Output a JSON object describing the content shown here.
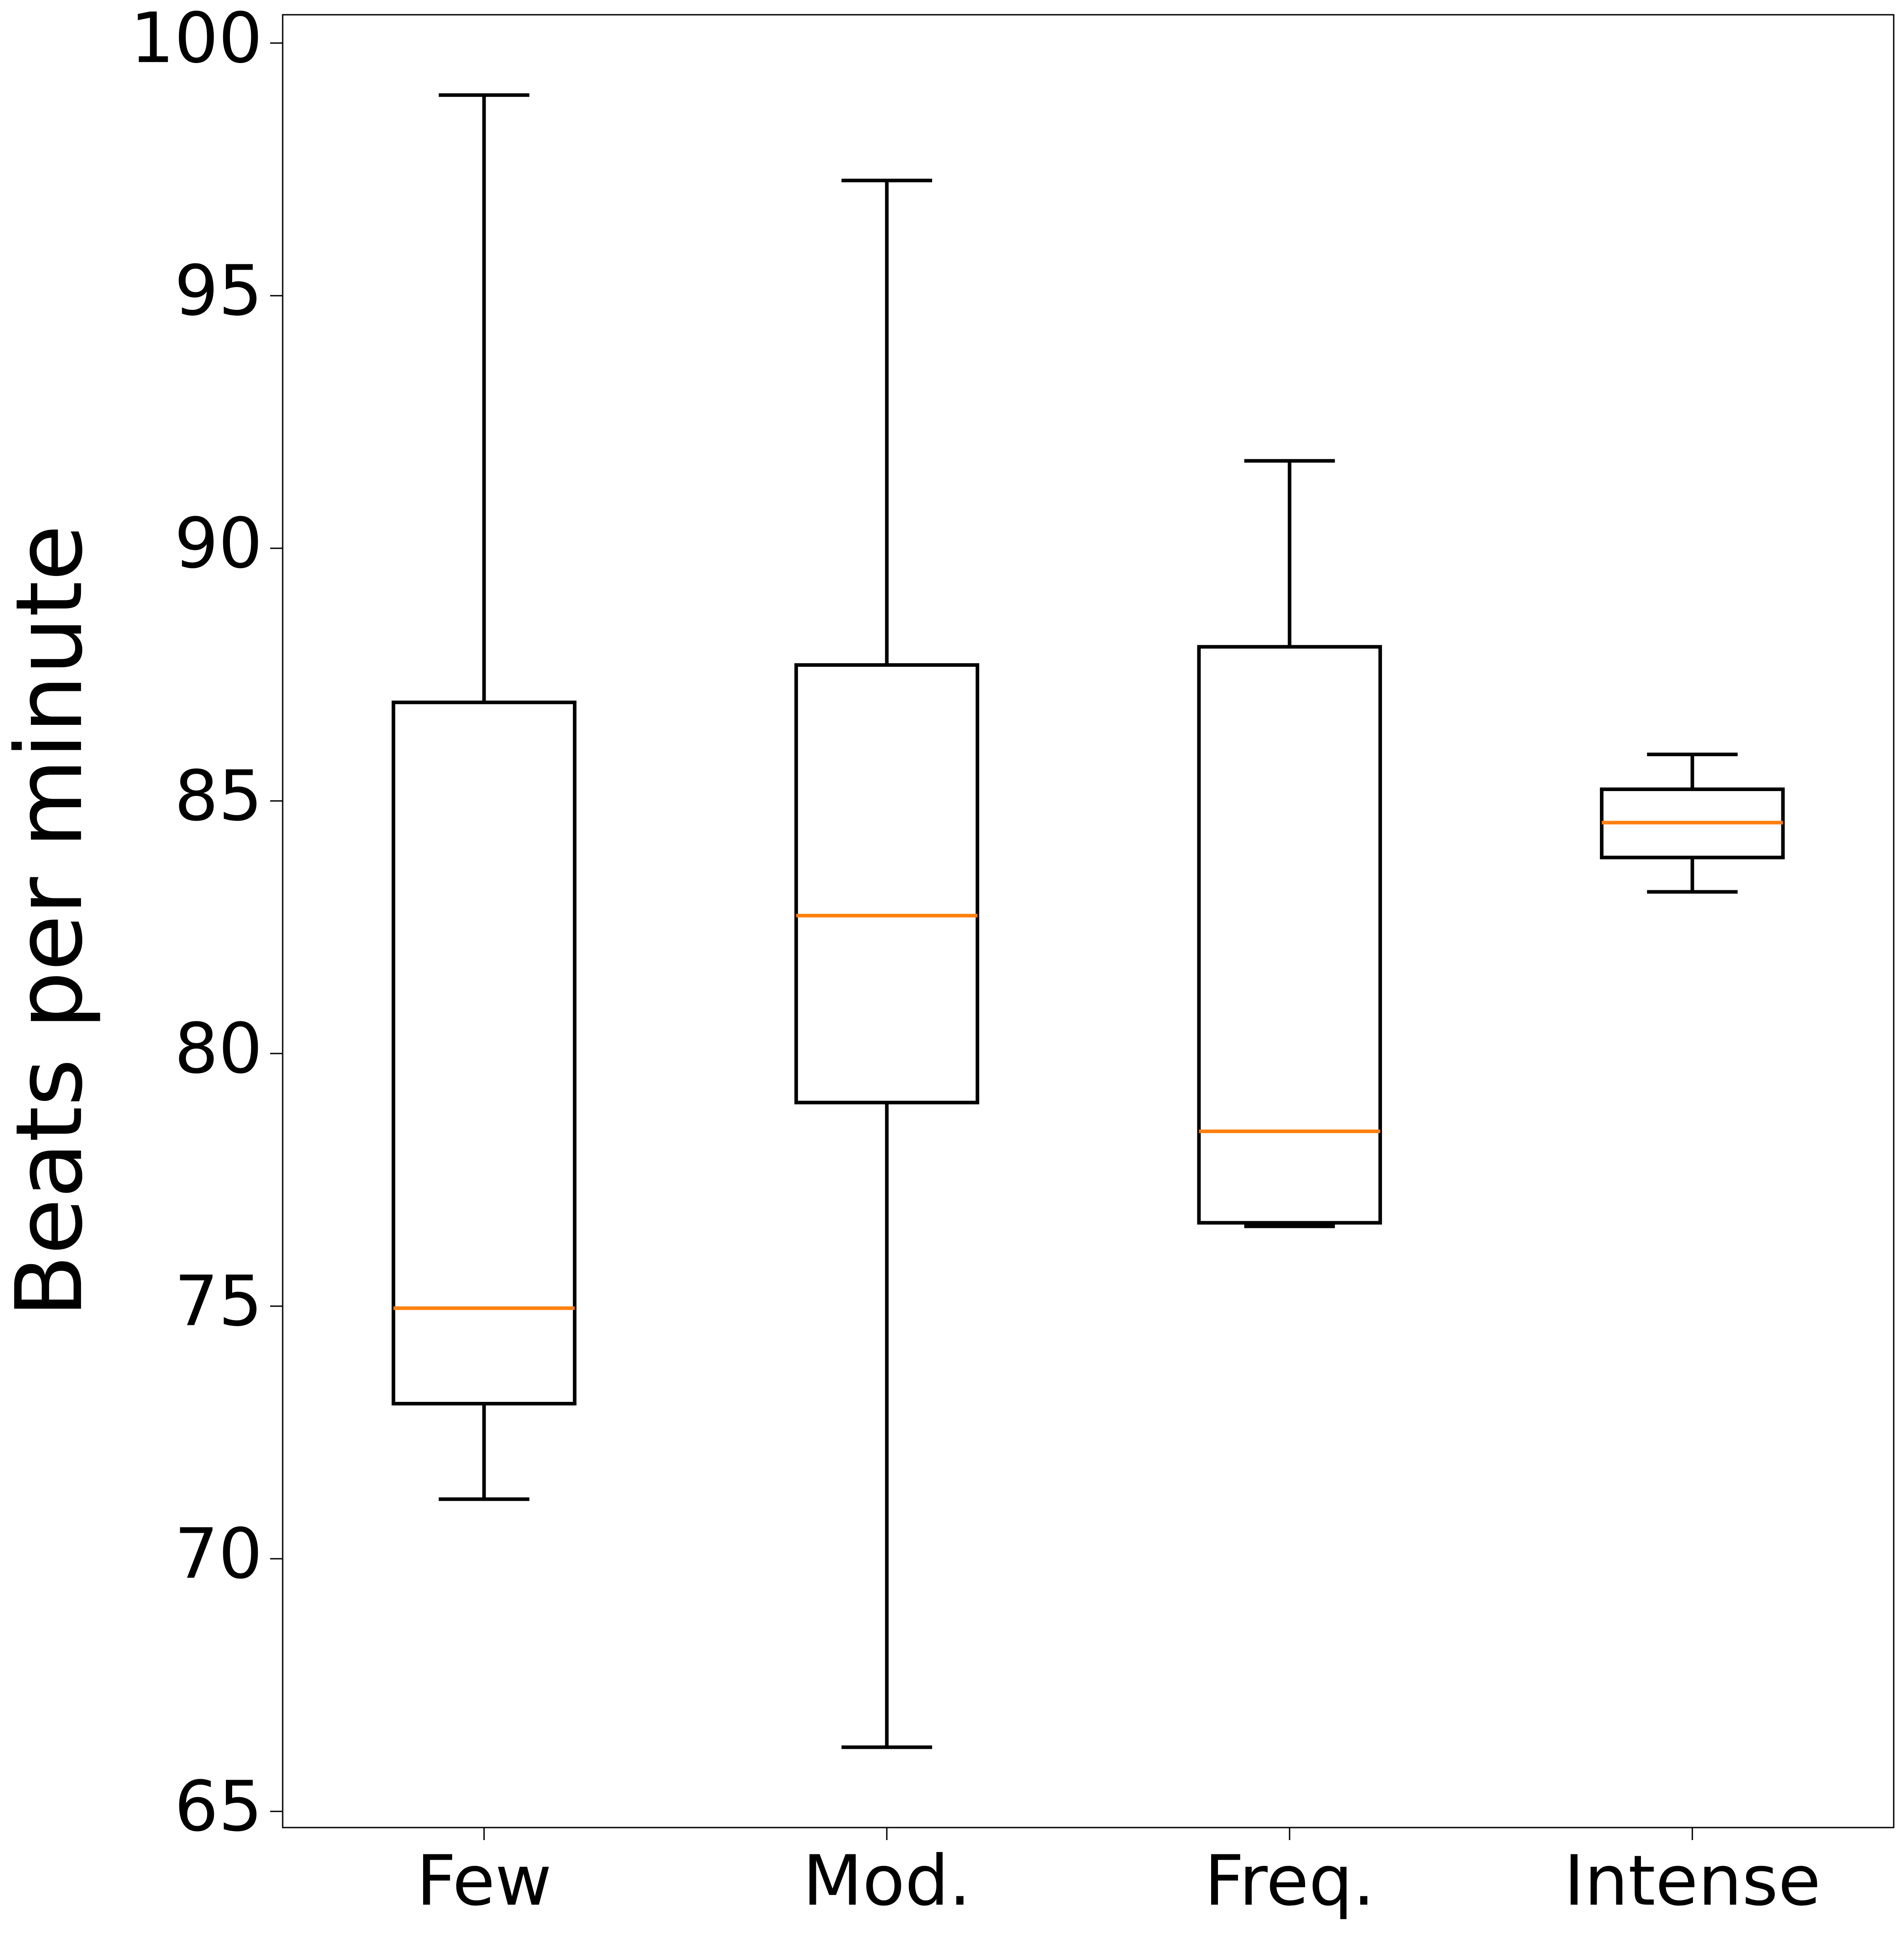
{
  "chart_data": {
    "type": "box",
    "y_label": "Beats per minute",
    "categories": [
      "Few",
      "Mod.",
      "Freq.",
      "Intense"
    ],
    "whislo": [
      71.18,
      66.27,
      76.58,
      83.2
    ],
    "q1": [
      73.07,
      79.03,
      76.65,
      83.88
    ],
    "med": [
      74.96,
      82.73,
      78.46,
      84.57
    ],
    "q3": [
      86.95,
      87.69,
      88.05,
      85.23
    ],
    "whishi": [
      98.97,
      97.28,
      91.73,
      85.92
    ],
    "color": "#000000",
    "median_color": "#ff7f0e",
    "ylim": [
      64.68,
      100.56
    ],
    "yticks": [
      65,
      70,
      75,
      80,
      85,
      90,
      95,
      100
    ],
    "grid": false
  }
}
